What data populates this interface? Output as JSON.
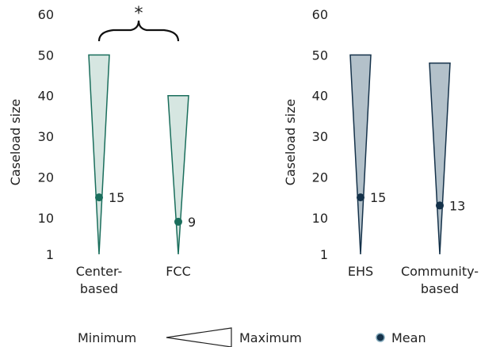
{
  "chart_data": [
    {
      "type": "area",
      "ylabel": "Caseload size",
      "yticks": [
        "1",
        "10",
        "20",
        "30",
        "40",
        "50",
        "60"
      ],
      "ylim": [
        1,
        60
      ],
      "categories": [
        [
          "Center-",
          "based"
        ],
        [
          "FCC"
        ]
      ],
      "series": [
        {
          "category": "Center-based",
          "min": 1,
          "max": 50,
          "mean": 15,
          "mean_label": "15"
        },
        {
          "category": "FCC",
          "min": 1,
          "max": 40,
          "mean": 9,
          "mean_label": "9"
        }
      ],
      "color": "#1a6e5c",
      "fill": "#d6e6e1",
      "annotation": {
        "text": "*",
        "between": [
          "Center-based",
          "FCC"
        ]
      }
    },
    {
      "type": "area",
      "ylabel": "Caseload size",
      "yticks": [
        "1",
        "10",
        "20",
        "30",
        "40",
        "50",
        "60"
      ],
      "ylim": [
        1,
        60
      ],
      "categories": [
        [
          "EHS"
        ],
        [
          "Community-",
          "based"
        ]
      ],
      "series": [
        {
          "category": "EHS",
          "min": 1,
          "max": 50,
          "mean": 15,
          "mean_label": "15"
        },
        {
          "category": "Community-based",
          "min": 1,
          "max": 48,
          "mean": 13,
          "mean_label": "13"
        }
      ],
      "color": "#15324a",
      "fill": "#b3c1ca"
    }
  ],
  "legend": {
    "minimum_label": "Minimum",
    "maximum_label": "Maximum",
    "mean_label": "Mean"
  }
}
